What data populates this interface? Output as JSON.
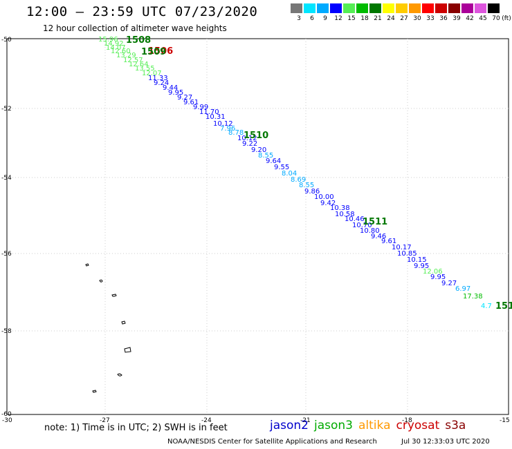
{
  "header": {
    "title": "12:00 – 23:59 UTC 07/23/2020",
    "subtitle": "12 hour collection of altimeter wave heights"
  },
  "color_scale": {
    "colors": [
      "#777777",
      "#00e5ff",
      "#00aaff",
      "#0000ff",
      "#55ee55",
      "#00bb00",
      "#007700",
      "#ffff00",
      "#ffcc00",
      "#ff9900",
      "#ff0000",
      "#cc0000",
      "#880000",
      "#aa0099",
      "#dd55dd",
      "#000000"
    ],
    "labels": [
      "3",
      "6",
      "9",
      "12",
      "15",
      "18",
      "21",
      "24",
      "27",
      "30",
      "33",
      "36",
      "39",
      "42",
      "45",
      "70"
    ],
    "unit": "(ft)"
  },
  "axes": {
    "lat_labels": [
      "-50",
      "-52",
      "-54",
      "-56",
      "-58",
      "-60"
    ],
    "lon_labels": [
      "-30",
      "-27",
      "-24",
      "-21",
      "-18",
      "-15"
    ]
  },
  "passes": [
    {
      "label": "1508",
      "color": "#007700"
    },
    {
      "label": "1506",
      "color": "#cc0000"
    },
    {
      "label": "1509",
      "color": "#007700"
    },
    {
      "label": "1510",
      "color": "#007700"
    },
    {
      "label": "1511",
      "color": "#007700"
    },
    {
      "label": "151",
      "color": "#007700"
    }
  ],
  "wave_heights": [
    {
      "v": "15.96",
      "c": "#55ee55"
    },
    {
      "v": "14.92",
      "c": "#55ee55"
    },
    {
      "v": "14.07",
      "c": "#55ee55"
    },
    {
      "v": "12.60",
      "c": "#55ee55"
    },
    {
      "v": "13.29",
      "c": "#55ee55"
    },
    {
      "v": "12.57",
      "c": "#55ee55"
    },
    {
      "v": "12.64",
      "c": "#55ee55"
    },
    {
      "v": "13.55",
      "c": "#55ee55"
    },
    {
      "v": "12.07",
      "c": "#55ee55"
    },
    {
      "v": "11.33",
      "c": "#0000ff"
    },
    {
      "v": "9.24",
      "c": "#0000ff"
    },
    {
      "v": "9.44",
      "c": "#0000ff"
    },
    {
      "v": "9.95",
      "c": "#0000ff"
    },
    {
      "v": "9.27",
      "c": "#0000ff"
    },
    {
      "v": "9.61",
      "c": "#0000ff"
    },
    {
      "v": "9.99",
      "c": "#0000ff"
    },
    {
      "v": "11.70",
      "c": "#0000ff"
    },
    {
      "v": "10.31",
      "c": "#0000ff"
    },
    {
      "v": "10.12",
      "c": "#0000ff"
    },
    {
      "v": "7.96",
      "c": "#00aaff"
    },
    {
      "v": "8.78",
      "c": "#00aaff"
    },
    {
      "v": "10.12",
      "c": "#0000ff"
    },
    {
      "v": "9.22",
      "c": "#0000ff"
    },
    {
      "v": "9.20",
      "c": "#0000ff"
    },
    {
      "v": "8.55",
      "c": "#00aaff"
    },
    {
      "v": "9.64",
      "c": "#0000ff"
    },
    {
      "v": "9.55",
      "c": "#0000ff"
    },
    {
      "v": "8.04",
      "c": "#00aaff"
    },
    {
      "v": "8.69",
      "c": "#00aaff"
    },
    {
      "v": "8.55",
      "c": "#00aaff"
    },
    {
      "v": "9.86",
      "c": "#0000ff"
    },
    {
      "v": "10.00",
      "c": "#0000ff"
    },
    {
      "v": "9.42",
      "c": "#0000ff"
    },
    {
      "v": "10.38",
      "c": "#0000ff"
    },
    {
      "v": "10.58",
      "c": "#0000ff"
    },
    {
      "v": "10.46",
      "c": "#0000ff"
    },
    {
      "v": "10.70",
      "c": "#0000ff"
    },
    {
      "v": "10.80",
      "c": "#0000ff"
    },
    {
      "v": "9.46",
      "c": "#0000ff"
    },
    {
      "v": "9.61",
      "c": "#0000ff"
    },
    {
      "v": "10.17",
      "c": "#0000ff"
    },
    {
      "v": "10.85",
      "c": "#0000ff"
    },
    {
      "v": "10.15",
      "c": "#0000ff"
    },
    {
      "v": "9.95",
      "c": "#0000ff"
    },
    {
      "v": "12.06",
      "c": "#55ee55"
    },
    {
      "v": "9.95",
      "c": "#0000ff"
    },
    {
      "v": "9.27",
      "c": "#0000ff"
    },
    {
      "v": "6.97",
      "c": "#00aaff"
    },
    {
      "v": "17.38",
      "c": "#00bb00"
    },
    {
      "v": "4.7",
      "c": "#00e5ff"
    }
  ],
  "footer": {
    "note": "note:  1) Time is in UTC;  2) SWH is in feet",
    "legend": [
      {
        "name": "jason2",
        "color": "#0000cc"
      },
      {
        "name": "jason3",
        "color": "#00aa00"
      },
      {
        "name": "altika",
        "color": "#ff9900"
      },
      {
        "name": "cryosat",
        "color": "#cc0000"
      },
      {
        "name": "s3a",
        "color": "#880000"
      }
    ],
    "agency": "NOAA/NESDIS Center for Satellite Applications and Research",
    "timestamp": "Jul 30 12:33:03 UTC 2020"
  }
}
